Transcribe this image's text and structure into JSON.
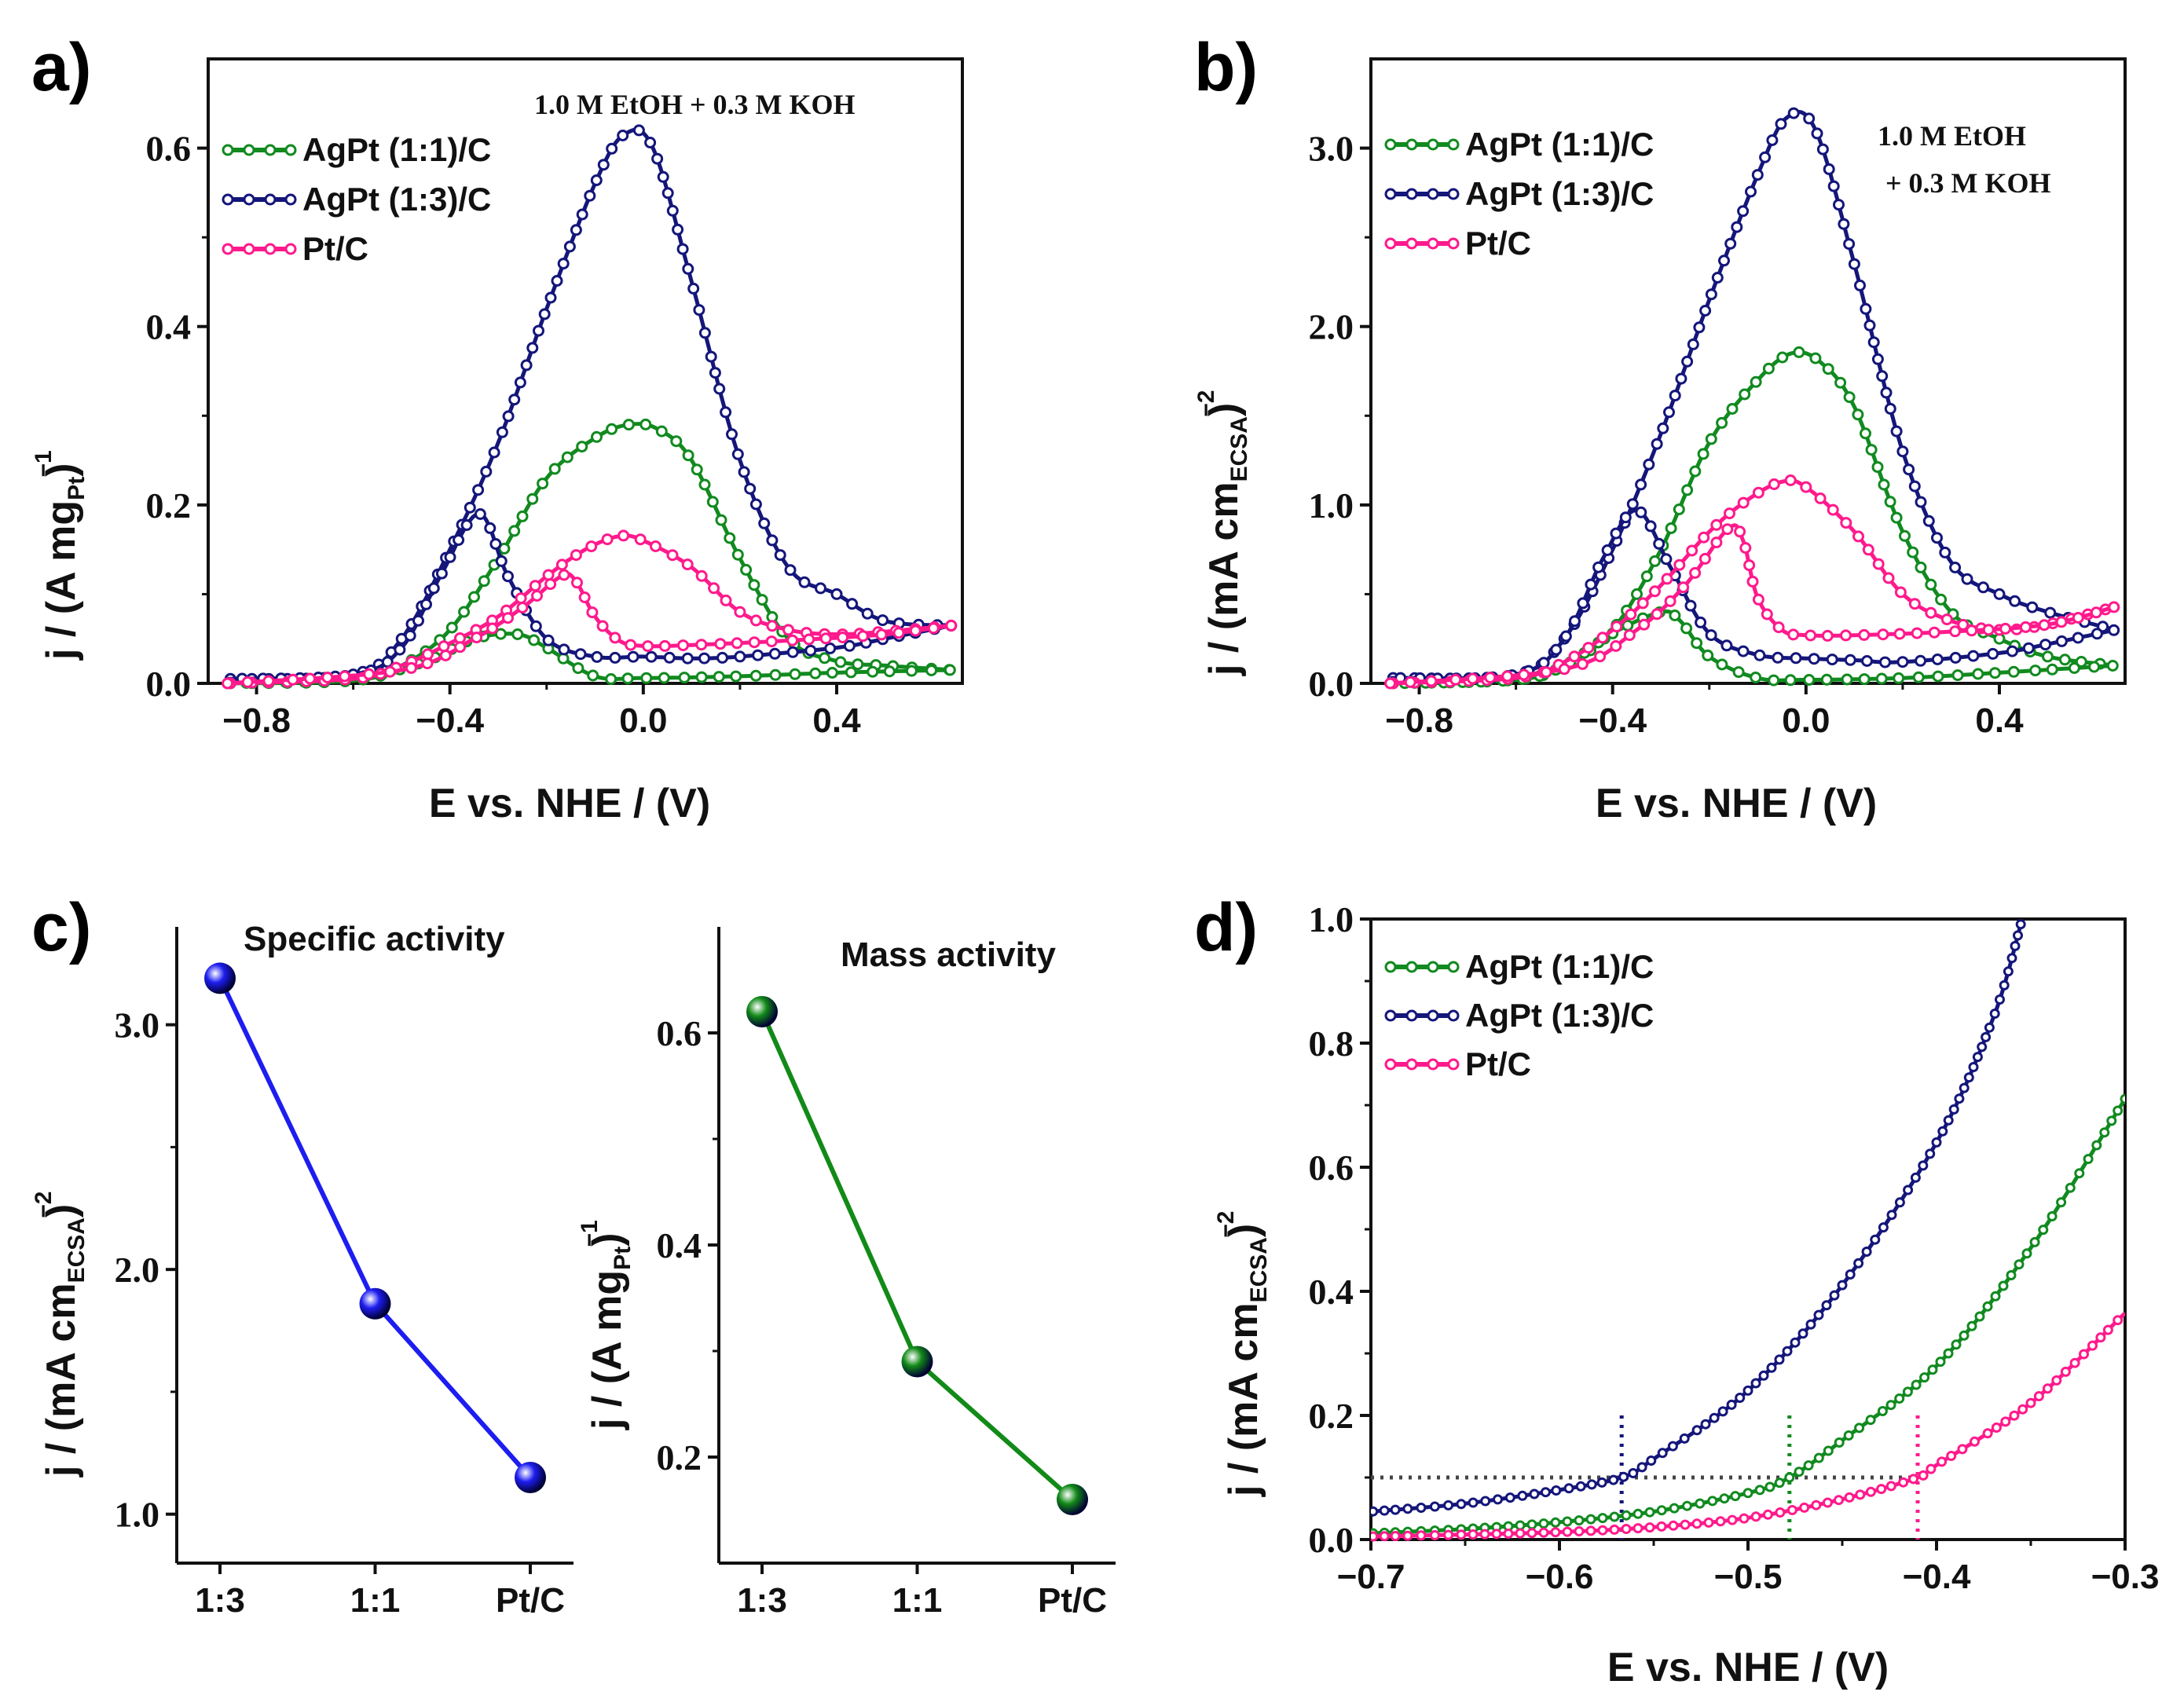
{
  "colors": {
    "agpt11": "#118a1f",
    "agpt13": "#14167a",
    "ptc": "#ff1a8c",
    "blue_ball": "#1d1df0",
    "green_ball": "#128a18",
    "dotted_grey": "#444444"
  },
  "chart_data": [
    {
      "panel": "a)",
      "type": "line",
      "title": "",
      "annotation": [
        "1.0 M EtOH + 0.3 M KOH"
      ],
      "xlabel": "E vs. NHE / (V)",
      "ylabel": "j / (A mg",
      "ylabel_sub": "Pt",
      "ylabel_close": ")",
      "ylabel_sup": "−1",
      "xlim": [
        -0.9,
        0.66
      ],
      "ylim": [
        0,
        0.7
      ],
      "xticks": [
        -0.8,
        -0.4,
        0.0,
        0.4
      ],
      "xtick_labels": [
        "−0.8",
        "−0.4",
        "0.0",
        "0.4"
      ],
      "yticks": [
        0.0,
        0.2,
        0.4,
        0.6
      ],
      "ytick_labels": [
        "0.0",
        "0.2",
        "0.4",
        "0.6"
      ],
      "legend": [
        "AgPt (1:1)/C",
        "AgPt (1:3)/C",
        "Pt/C"
      ],
      "series": [
        {
          "name": "AgPt (1:1)/C",
          "color": "agpt11",
          "forward": [
            [
              -0.86,
              0.0
            ],
            [
              -0.6,
              0.003
            ],
            [
              -0.5,
              0.02
            ],
            [
              -0.4,
              0.06
            ],
            [
              -0.3,
              0.14
            ],
            [
              -0.2,
              0.23
            ],
            [
              -0.1,
              0.275
            ],
            [
              -0.03,
              0.29
            ],
            [
              0.03,
              0.285
            ],
            [
              0.1,
              0.25
            ],
            [
              0.2,
              0.14
            ],
            [
              0.3,
              0.05
            ],
            [
              0.4,
              0.025
            ],
            [
              0.5,
              0.02
            ],
            [
              0.64,
              0.015
            ]
          ],
          "backward": [
            [
              0.64,
              0.015
            ],
            [
              0.4,
              0.012
            ],
            [
              0.2,
              0.008
            ],
            [
              0.0,
              0.006
            ],
            [
              -0.1,
              0.008
            ],
            [
              -0.2,
              0.04
            ],
            [
              -0.26,
              0.055
            ],
            [
              -0.35,
              0.05
            ],
            [
              -0.45,
              0.025
            ],
            [
              -0.6,
              0.005
            ],
            [
              -0.86,
              0.0
            ]
          ]
        },
        {
          "name": "AgPt (1:3)/C",
          "color": "agpt13",
          "forward": [
            [
              -0.86,
              0.005
            ],
            [
              -0.6,
              0.01
            ],
            [
              -0.5,
              0.05
            ],
            [
              -0.4,
              0.15
            ],
            [
              -0.3,
              0.27
            ],
            [
              -0.2,
              0.42
            ],
            [
              -0.1,
              0.56
            ],
            [
              -0.04,
              0.615
            ],
            [
              0.02,
              0.6
            ],
            [
              0.1,
              0.45
            ],
            [
              0.2,
              0.25
            ],
            [
              0.3,
              0.13
            ],
            [
              0.4,
              0.1
            ],
            [
              0.5,
              0.07
            ],
            [
              0.64,
              0.065
            ]
          ],
          "backward": [
            [
              0.64,
              0.065
            ],
            [
              0.5,
              0.05
            ],
            [
              0.4,
              0.04
            ],
            [
              0.2,
              0.03
            ],
            [
              0.1,
              0.028
            ],
            [
              0.0,
              0.03
            ],
            [
              -0.1,
              0.03
            ],
            [
              -0.2,
              0.05
            ],
            [
              -0.28,
              0.12
            ],
            [
              -0.34,
              0.19
            ],
            [
              -0.42,
              0.12
            ],
            [
              -0.5,
              0.04
            ],
            [
              -0.6,
              0.01
            ],
            [
              -0.86,
              0.005
            ]
          ]
        },
        {
          "name": "Pt/C",
          "color": "ptc",
          "forward": [
            [
              -0.86,
              0.0
            ],
            [
              -0.6,
              0.005
            ],
            [
              -0.5,
              0.02
            ],
            [
              -0.4,
              0.045
            ],
            [
              -0.3,
              0.075
            ],
            [
              -0.2,
              0.12
            ],
            [
              -0.12,
              0.15
            ],
            [
              -0.05,
              0.165
            ],
            [
              0.0,
              0.16
            ],
            [
              0.1,
              0.13
            ],
            [
              0.2,
              0.08
            ],
            [
              0.3,
              0.06
            ],
            [
              0.4,
              0.055
            ],
            [
              0.5,
              0.058
            ],
            [
              0.64,
              0.065
            ]
          ],
          "backward": [
            [
              0.64,
              0.065
            ],
            [
              0.5,
              0.055
            ],
            [
              0.3,
              0.048
            ],
            [
              0.1,
              0.043
            ],
            [
              0.0,
              0.042
            ],
            [
              -0.05,
              0.048
            ],
            [
              -0.1,
              0.075
            ],
            [
              -0.14,
              0.115
            ],
            [
              -0.17,
              0.12
            ],
            [
              -0.25,
              0.085
            ],
            [
              -0.35,
              0.05
            ],
            [
              -0.5,
              0.015
            ],
            [
              -0.86,
              0.0
            ]
          ]
        }
      ]
    },
    {
      "panel": "b)",
      "type": "line",
      "title": "",
      "annotation": [
        "1.0 M EtOH",
        "+ 0.3 M KOH"
      ],
      "xlabel": "E vs. NHE / (V)",
      "ylabel": "j / (mA cm",
      "ylabel_sub": "ECSA",
      "ylabel_close": ")",
      "ylabel_sup": "−2",
      "xlim": [
        -0.9,
        0.66
      ],
      "ylim": [
        0,
        3.5
      ],
      "xticks": [
        -0.8,
        -0.4,
        0.0,
        0.4
      ],
      "xtick_labels": [
        "−0.8",
        "−0.4",
        "0.0",
        "0.4"
      ],
      "yticks": [
        0.0,
        1.0,
        2.0,
        3.0
      ],
      "ytick_labels": [
        "0.0",
        "1.0",
        "2.0",
        "3.0"
      ],
      "legend": [
        "AgPt (1:1)/C",
        "AgPt (1:3)/C",
        "Pt/C"
      ],
      "series": [
        {
          "name": "AgPt (1:1)/C",
          "color": "agpt11",
          "forward": [
            [
              -0.86,
              0.0
            ],
            [
              -0.6,
              0.02
            ],
            [
              -0.5,
              0.1
            ],
            [
              -0.4,
              0.3
            ],
            [
              -0.3,
              0.75
            ],
            [
              -0.2,
              1.35
            ],
            [
              -0.1,
              1.7
            ],
            [
              -0.03,
              1.85
            ],
            [
              0.03,
              1.8
            ],
            [
              0.1,
              1.55
            ],
            [
              0.2,
              0.85
            ],
            [
              0.3,
              0.4
            ],
            [
              0.4,
              0.25
            ],
            [
              0.5,
              0.15
            ],
            [
              0.64,
              0.1
            ]
          ],
          "backward": [
            [
              0.64,
              0.1
            ],
            [
              0.4,
              0.06
            ],
            [
              0.2,
              0.03
            ],
            [
              0.0,
              0.02
            ],
            [
              -0.1,
              0.03
            ],
            [
              -0.2,
              0.15
            ],
            [
              -0.26,
              0.35
            ],
            [
              -0.3,
              0.4
            ],
            [
              -0.4,
              0.28
            ],
            [
              -0.5,
              0.1
            ],
            [
              -0.6,
              0.02
            ],
            [
              -0.86,
              0.0
            ]
          ]
        },
        {
          "name": "AgPt (1:3)/C",
          "color": "agpt13",
          "forward": [
            [
              -0.86,
              0.03
            ],
            [
              -0.6,
              0.05
            ],
            [
              -0.5,
              0.25
            ],
            [
              -0.4,
              0.75
            ],
            [
              -0.3,
              1.4
            ],
            [
              -0.2,
              2.15
            ],
            [
              -0.1,
              2.85
            ],
            [
              -0.04,
              3.17
            ],
            [
              0.02,
              3.1
            ],
            [
              0.1,
              2.35
            ],
            [
              0.2,
              1.3
            ],
            [
              0.3,
              0.68
            ],
            [
              0.4,
              0.5
            ],
            [
              0.5,
              0.4
            ],
            [
              0.64,
              0.3
            ]
          ],
          "backward": [
            [
              0.64,
              0.3
            ],
            [
              0.5,
              0.22
            ],
            [
              0.4,
              0.17
            ],
            [
              0.2,
              0.12
            ],
            [
              0.1,
              0.13
            ],
            [
              0.0,
              0.14
            ],
            [
              -0.1,
              0.16
            ],
            [
              -0.2,
              0.28
            ],
            [
              -0.28,
              0.65
            ],
            [
              -0.35,
              0.97
            ],
            [
              -0.42,
              0.7
            ],
            [
              -0.5,
              0.25
            ],
            [
              -0.6,
              0.05
            ],
            [
              -0.86,
              0.03
            ]
          ]
        },
        {
          "name": "Pt/C",
          "color": "ptc",
          "forward": [
            [
              -0.86,
              0.0
            ],
            [
              -0.6,
              0.03
            ],
            [
              -0.5,
              0.12
            ],
            [
              -0.4,
              0.3
            ],
            [
              -0.3,
              0.55
            ],
            [
              -0.2,
              0.85
            ],
            [
              -0.12,
              1.03
            ],
            [
              -0.05,
              1.13
            ],
            [
              0.0,
              1.1
            ],
            [
              0.1,
              0.85
            ],
            [
              0.2,
              0.5
            ],
            [
              0.3,
              0.35
            ],
            [
              0.4,
              0.3
            ],
            [
              0.5,
              0.33
            ],
            [
              0.64,
              0.43
            ]
          ],
          "backward": [
            [
              0.64,
              0.43
            ],
            [
              0.5,
              0.33
            ],
            [
              0.3,
              0.29
            ],
            [
              0.1,
              0.27
            ],
            [
              0.0,
              0.27
            ],
            [
              -0.05,
              0.3
            ],
            [
              -0.1,
              0.48
            ],
            [
              -0.13,
              0.8
            ],
            [
              -0.16,
              0.87
            ],
            [
              -0.25,
              0.55
            ],
            [
              -0.35,
              0.3
            ],
            [
              -0.5,
              0.08
            ],
            [
              -0.86,
              0.0
            ]
          ]
        }
      ]
    },
    {
      "panel": "c)",
      "type": "line",
      "title": "Specific activity",
      "xlabel": "",
      "ylabel": "j / (mA cm",
      "ylabel_sub": "ECSA",
      "ylabel_close": ")",
      "ylabel_sup": "−2",
      "ylim": [
        0.8,
        3.4
      ],
      "categories": [
        "1:3",
        "1:1",
        "Pt/C"
      ],
      "yticks": [
        1.0,
        2.0,
        3.0
      ],
      "ytick_labels": [
        "1.0",
        "2.0",
        "3.0"
      ],
      "series": [
        {
          "name": "Specific activity",
          "color": "blue_ball",
          "values": [
            3.19,
            1.86,
            1.15
          ]
        }
      ]
    },
    {
      "panel": "",
      "type": "line",
      "title": "Mass activity",
      "xlabel": "",
      "ylabel": "j / (A mg",
      "ylabel_sub": "Pt",
      "ylabel_close": ")",
      "ylabel_sup": "−1",
      "ylim": [
        0.1,
        0.7
      ],
      "categories": [
        "1:3",
        "1:1",
        "Pt/C"
      ],
      "yticks": [
        0.2,
        0.4,
        0.6
      ],
      "ytick_labels": [
        "0.2",
        "0.4",
        "0.6"
      ],
      "series": [
        {
          "name": "Mass activity",
          "color": "green_ball",
          "values": [
            0.62,
            0.29,
            0.16
          ]
        }
      ]
    },
    {
      "panel": "d)",
      "type": "line",
      "title": "",
      "xlabel": "E vs. NHE / (V)",
      "ylabel": "j / (mA cm",
      "ylabel_sub": "ECSA",
      "ylabel_close": ")",
      "ylabel_sup": "−2",
      "xlim": [
        -0.7,
        -0.3
      ],
      "ylim": [
        0,
        1.0
      ],
      "xticks": [
        -0.7,
        -0.6,
        -0.5,
        -0.4,
        -0.3
      ],
      "xtick_labels": [
        "−0.7",
        "−0.6",
        "−0.5",
        "−0.4",
        "−0.3"
      ],
      "yticks": [
        0.0,
        0.2,
        0.4,
        0.6,
        0.8,
        1.0
      ],
      "ytick_labels": [
        "0.0",
        "0.2",
        "0.4",
        "0.6",
        "0.8",
        "1.0"
      ],
      "legend": [
        "AgPt (1:1)/C",
        "AgPt (1:3)/C",
        "Pt/C"
      ],
      "threshold_y": 0.1,
      "onset_x": {
        "AgPt (1:3)/C": -0.567,
        "AgPt (1:1)/C": -0.478,
        "Pt/C": -0.41
      },
      "series": [
        {
          "name": "AgPt (1:1)/C",
          "color": "agpt11",
          "points": [
            [
              -0.7,
              0.01
            ],
            [
              -0.65,
              0.017
            ],
            [
              -0.6,
              0.028
            ],
            [
              -0.55,
              0.045
            ],
            [
              -0.5,
              0.075
            ],
            [
              -0.478,
              0.1
            ],
            [
              -0.45,
              0.16
            ],
            [
              -0.4,
              0.28
            ],
            [
              -0.35,
              0.47
            ],
            [
              -0.3,
              0.71
            ]
          ]
        },
        {
          "name": "AgPt (1:3)/C",
          "color": "agpt13",
          "points": [
            [
              -0.7,
              0.045
            ],
            [
              -0.65,
              0.058
            ],
            [
              -0.6,
              0.08
            ],
            [
              -0.567,
              0.1
            ],
            [
              -0.55,
              0.13
            ],
            [
              -0.5,
              0.24
            ],
            [
              -0.45,
              0.41
            ],
            [
              -0.4,
              0.64
            ],
            [
              -0.37,
              0.84
            ],
            [
              -0.355,
              0.995
            ]
          ]
        },
        {
          "name": "Pt/C",
          "color": "ptc",
          "points": [
            [
              -0.7,
              0.005
            ],
            [
              -0.65,
              0.008
            ],
            [
              -0.6,
              0.012
            ],
            [
              -0.55,
              0.02
            ],
            [
              -0.5,
              0.035
            ],
            [
              -0.45,
              0.065
            ],
            [
              -0.41,
              0.1
            ],
            [
              -0.4,
              0.12
            ],
            [
              -0.35,
              0.22
            ],
            [
              -0.3,
              0.365
            ]
          ]
        }
      ]
    }
  ]
}
